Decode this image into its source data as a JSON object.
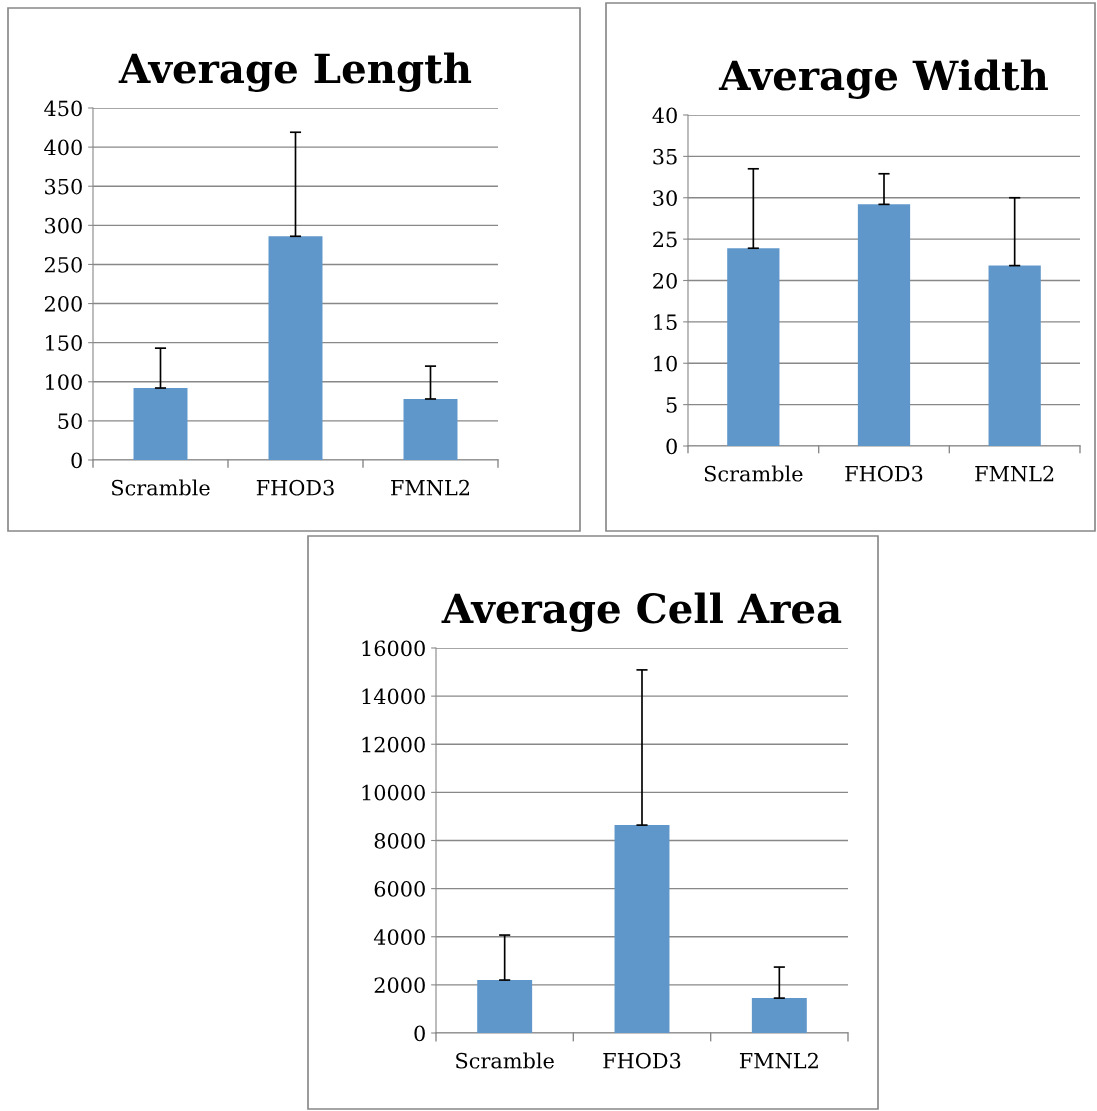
{
  "chart_data": [
    {
      "type": "bar",
      "title": "Average Length",
      "categories": [
        "Scramble",
        "FHOD3",
        "FMNL2"
      ],
      "values": [
        92,
        286,
        78
      ],
      "errors": [
        [
          92,
          143
        ],
        [
          286,
          419
        ],
        [
          78,
          120
        ]
      ],
      "color": "#6097cb",
      "ylim": [
        0,
        450
      ],
      "yticks": [
        0,
        50,
        100,
        150,
        200,
        250,
        300,
        350,
        400,
        450
      ],
      "grid": "y"
    },
    {
      "type": "bar",
      "title": "Average Width",
      "categories": [
        "Scramble",
        "FHOD3",
        "FMNL2"
      ],
      "values": [
        23.9,
        29.2,
        21.8
      ],
      "errors": [
        [
          23.9,
          33.5
        ],
        [
          29.2,
          32.9
        ],
        [
          21.8,
          30.0
        ]
      ],
      "color": "#6097cb",
      "ylim": [
        0,
        40
      ],
      "yticks": [
        0,
        5,
        10,
        15,
        20,
        25,
        30,
        35,
        40
      ],
      "grid": "y"
    },
    {
      "type": "bar",
      "title": "Average Cell Area",
      "categories": [
        "Scramble",
        "FHOD3",
        "FMNL2"
      ],
      "values": [
        2200,
        8640,
        1450
      ],
      "errors": [
        [
          2200,
          4070
        ],
        [
          8640,
          15090
        ],
        [
          1450,
          2740
        ]
      ],
      "color": "#6097cb",
      "ylim": [
        0,
        16000
      ],
      "yticks": [
        0,
        2000,
        4000,
        6000,
        8000,
        10000,
        12000,
        14000,
        16000
      ],
      "grid": "y"
    }
  ]
}
